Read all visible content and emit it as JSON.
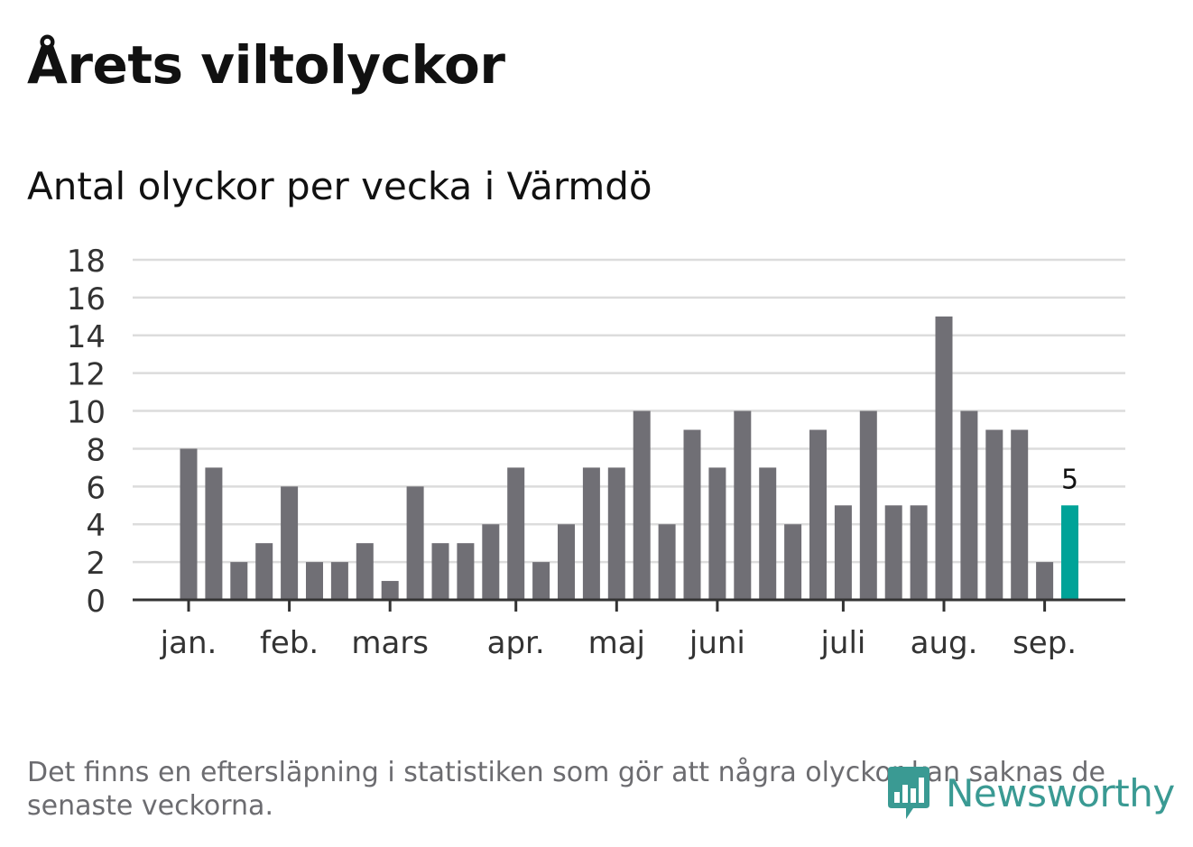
{
  "chart_data": {
    "type": "bar",
    "title": "Årets viltolyckor",
    "subtitle": "Antal olyckor per vecka i Värmdö",
    "xlabel": "",
    "ylabel": "",
    "ylim": [
      0,
      18
    ],
    "yticks": [
      0,
      2,
      4,
      6,
      8,
      10,
      12,
      14,
      16,
      18
    ],
    "grid": true,
    "month_ticks": [
      {
        "label": "jan.",
        "week": 1
      },
      {
        "label": "feb.",
        "week": 5
      },
      {
        "label": "mars",
        "week": 9
      },
      {
        "label": "apr.",
        "week": 14
      },
      {
        "label": "maj",
        "week": 18
      },
      {
        "label": "juni",
        "week": 22
      },
      {
        "label": "juli",
        "week": 27
      },
      {
        "label": "aug.",
        "week": 31
      },
      {
        "label": "sep.",
        "week": 35
      }
    ],
    "weeks": [
      1,
      2,
      3,
      4,
      5,
      6,
      7,
      8,
      9,
      10,
      11,
      12,
      13,
      14,
      15,
      16,
      17,
      18,
      19,
      20,
      21,
      22,
      23,
      24,
      25,
      26,
      27,
      28,
      29,
      30,
      31,
      32,
      33,
      34,
      35,
      36
    ],
    "values": [
      8,
      7,
      2,
      3,
      6,
      2,
      2,
      3,
      1,
      6,
      3,
      3,
      4,
      7,
      2,
      4,
      7,
      7,
      10,
      4,
      9,
      7,
      10,
      7,
      4,
      9,
      5,
      10,
      5,
      5,
      15,
      10,
      9,
      9,
      2,
      5
    ],
    "highlight_index": 35,
    "highlight_label": "5",
    "colors": {
      "bar": "#706f75",
      "highlight": "#00a398",
      "grid": "#dcdcdc",
      "axis": "#333333"
    }
  },
  "footnote": "Det finns en eftersläpning i statistiken som gör att några olyckor kan saknas de senaste veckorna.",
  "logo": {
    "text": "Newsworthy",
    "icon": "newsworthy-bar-chart-icon"
  }
}
